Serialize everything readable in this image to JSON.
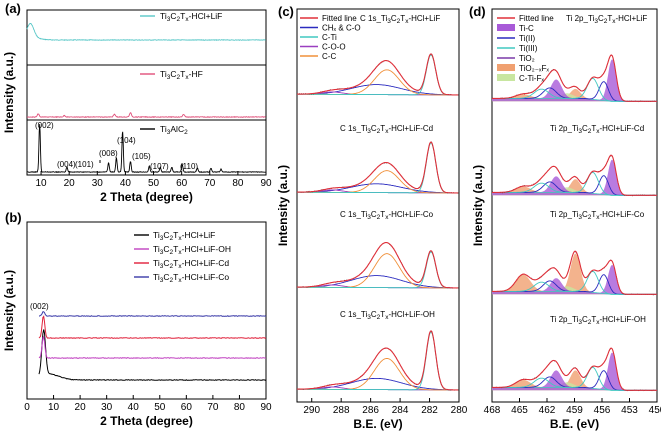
{
  "chart_data": [
    {
      "id": "a",
      "type": "line",
      "panel": "(a)",
      "xlabel": "2 Theta (degree)",
      "ylabel": "Intensity (a.u.)",
      "xlim": [
        5,
        90
      ],
      "x_ticks": [
        "10",
        "20",
        "30",
        "40",
        "50",
        "60",
        "70",
        "80",
        "90"
      ],
      "series": [
        {
          "name": "Ti3C2Tx-HCl+LiF",
          "label_base": "Ti",
          "label_sub1": "3",
          "label_mid": "C",
          "label_sub2": "2",
          "label_tail": "T",
          "label_sub3": "x",
          "label_end": "-HCl+LiF",
          "color": "#58c7c7",
          "peaks": [
            [
              6.2,
              1.0
            ]
          ]
        },
        {
          "name": "Ti3C2Tx-HF",
          "label_base": "Ti",
          "label_sub1": "3",
          "label_mid": "C",
          "label_sub2": "2",
          "label_tail": "T",
          "label_sub3": "x",
          "label_end": "-HF",
          "color": "#e0507a",
          "peaks": [
            [
              9.0,
              0.25
            ],
            [
              18.3,
              0.12
            ],
            [
              36.1,
              0.22
            ],
            [
              41.8,
              0.35
            ],
            [
              60.7,
              0.22
            ]
          ]
        },
        {
          "name": "Ti3AlC2",
          "label_base": "Ti",
          "label_sub1": "3",
          "label_mid": "AlC",
          "label_sub2": "2",
          "color": "#000000",
          "peaks": [
            [
              9.5,
              1.0
            ],
            [
              19.2,
              0.1
            ],
            [
              34.0,
              0.2
            ],
            [
              36.8,
              0.3
            ],
            [
              39.0,
              0.85
            ],
            [
              41.8,
              0.22
            ],
            [
              48.5,
              0.12
            ],
            [
              52.4,
              0.1
            ],
            [
              56.5,
              0.1
            ],
            [
              60.2,
              0.16
            ],
            [
              65.6,
              0.08
            ],
            [
              70.4,
              0.08
            ],
            [
              74.0,
              0.06
            ]
          ]
        }
      ],
      "peak_labels": [
        "(002)",
        "(004)",
        "(101)",
        "(008)",
        "(104)",
        "(105)",
        "(107)",
        "(110)"
      ]
    },
    {
      "id": "b",
      "type": "line",
      "panel": "(b)",
      "xlabel": "2 Theta (degree)",
      "ylabel": "Intensity (a.u.)",
      "xlim": [
        0,
        90
      ],
      "x_ticks": [
        "0",
        "10",
        "20",
        "30",
        "40",
        "50",
        "60",
        "70",
        "80",
        "90"
      ],
      "annotation": "(002)",
      "series": [
        {
          "name": "Ti3C2Tx-HCl+LiF",
          "label_end": "-HCl+LiF",
          "color": "#000000",
          "baseline": 0.18
        },
        {
          "name": "Ti3C2Tx-HCl+LiF-OH",
          "label_end": "-HCl+LiF-OH",
          "color": "#c040c0",
          "baseline": 0.38
        },
        {
          "name": "Ti3C2Tx-HCl+LiF-Cd",
          "label_end": "-HCl+LiF-Cd",
          "color": "#e0203a",
          "baseline": 0.6
        },
        {
          "name": "Ti3C2Tx-HCl+LiF-Co",
          "label_end": "-HCl+LiF-Co",
          "color": "#3a3aa8",
          "baseline": 0.85
        }
      ]
    },
    {
      "id": "c",
      "type": "line",
      "panel": "(c)",
      "xlabel": "B.E. (eV)",
      "ylabel": "Intensity (a.u.)",
      "xlim": [
        291,
        280
      ],
      "x_ticks": [
        "290",
        "288",
        "286",
        "284",
        "282",
        "280"
      ],
      "legend": [
        {
          "label": "Fitted line",
          "color": "#e0303a",
          "kind": "line"
        },
        {
          "label": "CHₓ & C-O",
          "color": "#2b2bbf",
          "kind": "line"
        },
        {
          "label": "C-Ti",
          "color": "#40c8c0",
          "kind": "line"
        },
        {
          "label": "C-O-O",
          "color": "#9a3fc0",
          "kind": "line"
        },
        {
          "label": "C-C",
          "color": "#f0903a",
          "kind": "line"
        }
      ],
      "spectra": [
        {
          "title": "C 1s_Ti3C2Tx-HCl+LiF",
          "suffix": "-HCl+LiF",
          "tiA": 1.0,
          "ccA": 0.62,
          "chA": 0.25
        },
        {
          "title": "C 1s_Ti3C2Tx-HCl+LiF-Cd",
          "suffix": "-HCl+LiF-Cd",
          "tiA": 1.25,
          "ccA": 0.55,
          "chA": 0.22
        },
        {
          "title": "C 1s_Ti3C2Tx-HCl+LiF-Co",
          "suffix": "-HCl+LiF-Co",
          "tiA": 0.9,
          "ccA": 0.85,
          "chA": 0.3
        },
        {
          "title": "C 1s_Ti3C2Tx-HCl+LiF-OH",
          "suffix": "-HCl+LiF-OH",
          "tiA": 1.45,
          "ccA": 0.78,
          "chA": 0.28
        }
      ]
    },
    {
      "id": "d",
      "type": "line",
      "panel": "(d)",
      "xlabel": "B.E. (eV)",
      "ylabel": "Intensity (a.u.)",
      "xlim": [
        468,
        450
      ],
      "x_ticks": [
        "468",
        "465",
        "462",
        "459",
        "456",
        "453",
        "450"
      ],
      "legend": [
        {
          "label": "Fitted line",
          "color": "#e0303a",
          "kind": "line"
        },
        {
          "label": "Ti-C",
          "color": "#a85ad8",
          "kind": "fill"
        },
        {
          "label": "Ti(II)",
          "color": "#2b2bbf",
          "kind": "line"
        },
        {
          "label": "Ti(III)",
          "color": "#40c8c0",
          "kind": "line"
        },
        {
          "label": "TiO₂",
          "color": "#7a3aa8",
          "kind": "line"
        },
        {
          "label": "TiO₂₋ₓFₓ",
          "color": "#f0a070",
          "kind": "fill"
        },
        {
          "label": "C-Ti-Fₓ",
          "color": "#c8e6a0",
          "kind": "fill"
        }
      ],
      "spectra": [
        {
          "title": "Ti 2p_Ti3C2Tx-HCl+LiF",
          "suffix": "-HCl+LiF",
          "tic": 1.0,
          "tio": 0.25
        },
        {
          "title": "Ti 2p_Ti3C2Tx-HCl+LiF-Cd",
          "suffix": "-HCl+LiF-Cd",
          "tic": 0.85,
          "tio": 0.35
        },
        {
          "title": "Ti 2p_Ti3C2Tx-HCl+LiF-Co",
          "suffix": "-HCl+LiF-Co",
          "tic": 0.7,
          "tio": 1.0
        },
        {
          "title": "Ti 2p_Ti3C2Tx-HCl+LiF-OH",
          "suffix": "-HCl+LiF-OH",
          "tic": 0.9,
          "tio": 0.45
        }
      ]
    }
  ]
}
